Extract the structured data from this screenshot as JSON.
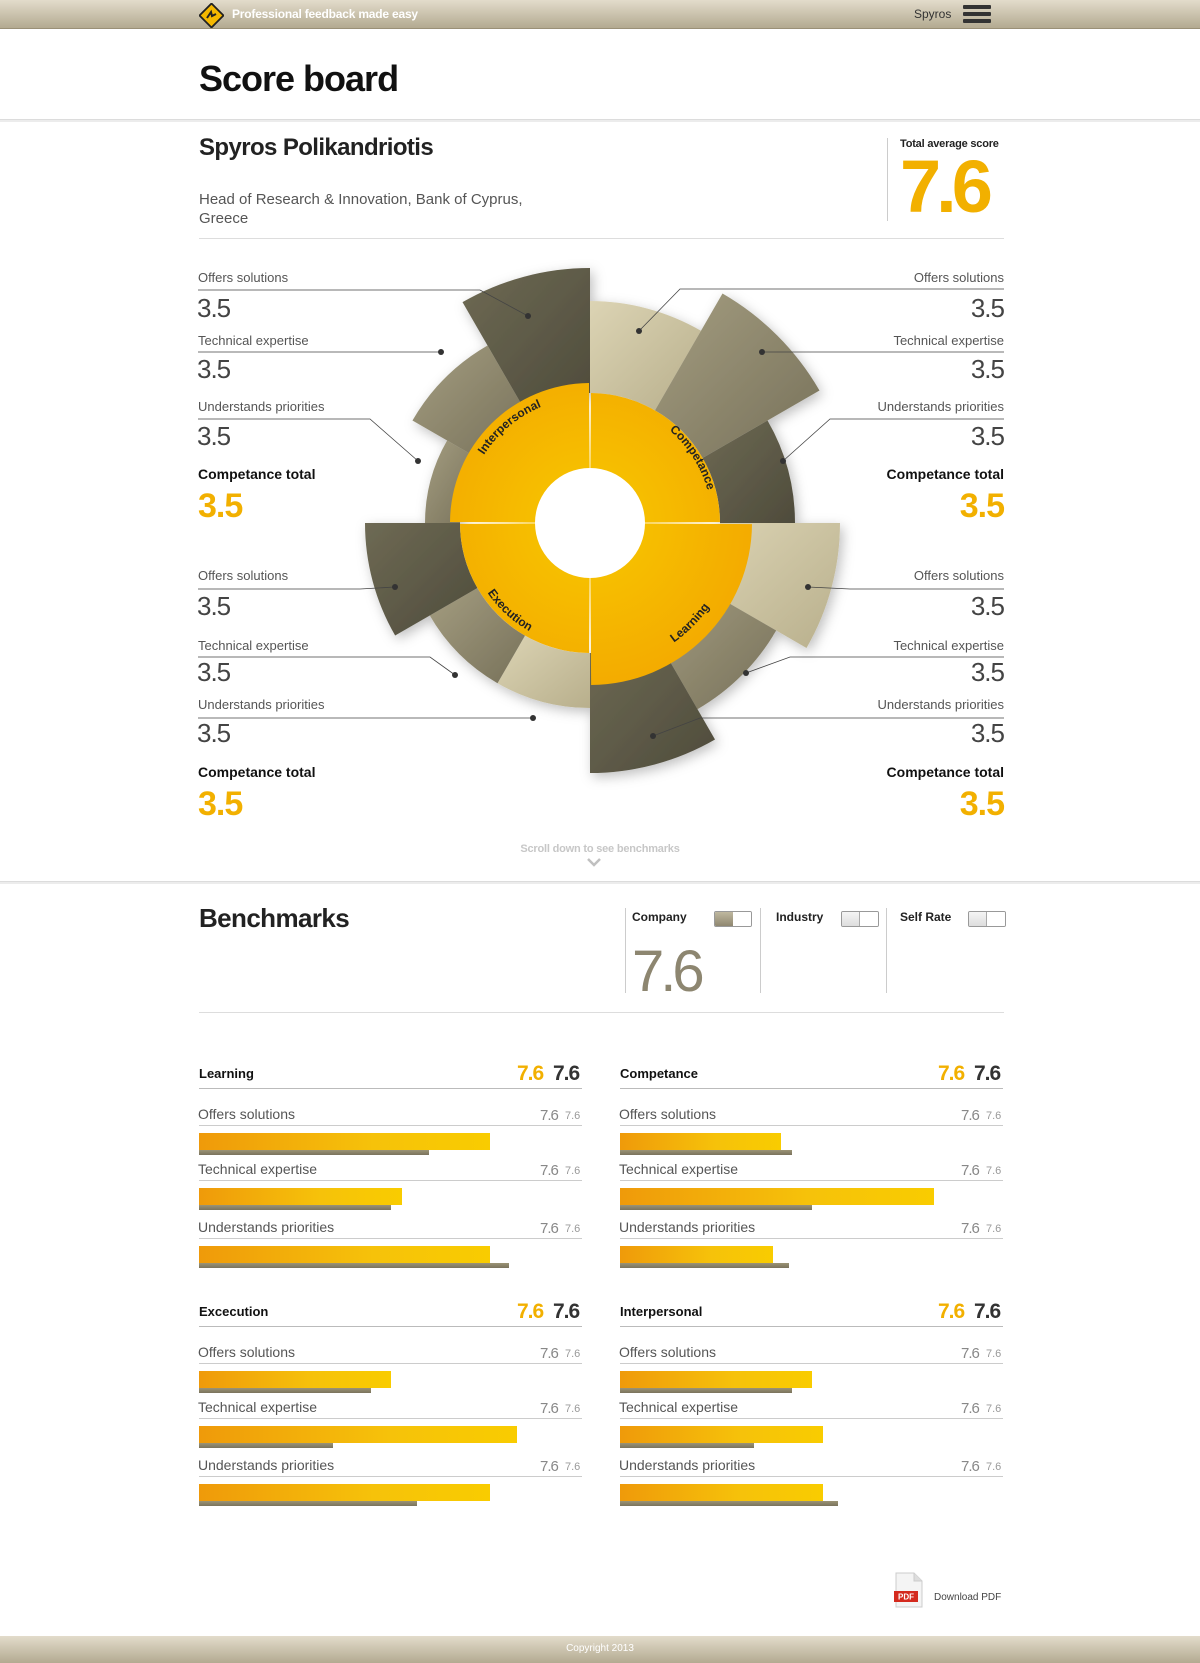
{
  "header": {
    "tagline": "Professional feedback made easy",
    "user": "Spyros",
    "logo_icon": "logo-icon",
    "menu_icon": "hamburger-menu-icon"
  },
  "page_title": "Score board",
  "person": {
    "name": "Spyros Polikandriotis",
    "role": "Head of Research & Innovation, Bank of Cyprus, Greece"
  },
  "total": {
    "label": "Total average score",
    "value": "7.6"
  },
  "scores": {
    "top_left": {
      "items": [
        {
          "label": "Offers solutions",
          "value": "3.5"
        },
        {
          "label": "Technical expertise",
          "value": "3.5"
        },
        {
          "label": "Understands priorities",
          "value": "3.5"
        }
      ],
      "total_label": "Competance total",
      "total_value": "3.5"
    },
    "top_right": {
      "items": [
        {
          "label": "Offers solutions",
          "value": "3.5"
        },
        {
          "label": "Technical expertise",
          "value": "3.5"
        },
        {
          "label": "Understands priorities",
          "value": "3.5"
        }
      ],
      "total_label": "Competance total",
      "total_value": "3.5"
    },
    "bottom_left": {
      "items": [
        {
          "label": "Offers solutions",
          "value": "3.5"
        },
        {
          "label": "Technical expertise",
          "value": "3.5"
        },
        {
          "label": "Understands priorities",
          "value": "3.5"
        }
      ],
      "total_label": "Competance total",
      "total_value": "3.5"
    },
    "bottom_right": {
      "items": [
        {
          "label": "Offers solutions",
          "value": "3.5"
        },
        {
          "label": "Technical expertise",
          "value": "3.5"
        },
        {
          "label": "Understands priorities",
          "value": "3.5"
        }
      ],
      "total_label": "Competance total",
      "total_value": "3.5"
    }
  },
  "wheel": {
    "categories": [
      "Interpersonal",
      "Competance",
      "Learning",
      "Execution"
    ],
    "colors": {
      "yellow": "#f6b800",
      "dark": "#5f5b47",
      "mid": "#8c866c",
      "light": "#c6bd9a"
    }
  },
  "scroll_hint": "Scroll down to see benchmarks",
  "benchmarks": {
    "title": "Benchmarks",
    "columns": [
      {
        "name": "Company",
        "toggle": "on",
        "value": "7.6"
      },
      {
        "name": "Industry",
        "toggle": "off",
        "value": ""
      },
      {
        "name": "Self Rate",
        "toggle": "off",
        "value": ""
      }
    ],
    "categories": [
      {
        "title": "Learning",
        "score_a": "7.6",
        "score_b": "7.6",
        "items": [
          {
            "label": "Offers solutions",
            "a": "7.6",
            "b": "7.6",
            "yellow": 0.76,
            "grey": 0.6
          },
          {
            "label": "Technical expertise",
            "a": "7.6",
            "b": "7.6",
            "yellow": 0.53,
            "grey": 0.5
          },
          {
            "label": "Understands priorities",
            "a": "7.6",
            "b": "7.6",
            "yellow": 0.76,
            "grey": 0.81
          }
        ]
      },
      {
        "title": "Competance",
        "score_a": "7.6",
        "score_b": "7.6",
        "items": [
          {
            "label": "Offers solutions",
            "a": "7.6",
            "b": "7.6",
            "yellow": 0.42,
            "grey": 0.45
          },
          {
            "label": "Technical expertise",
            "a": "7.6",
            "b": "7.6",
            "yellow": 0.82,
            "grey": 0.5
          },
          {
            "label": "Understands priorities",
            "a": "7.6",
            "b": "7.6",
            "yellow": 0.4,
            "grey": 0.44
          }
        ]
      },
      {
        "title": "Excecution",
        "score_a": "7.6",
        "score_b": "7.6",
        "items": [
          {
            "label": "Offers solutions",
            "a": "7.6",
            "b": "7.6",
            "yellow": 0.5,
            "grey": 0.45
          },
          {
            "label": "Technical expertise",
            "a": "7.6",
            "b": "7.6",
            "yellow": 0.83,
            "grey": 0.35
          },
          {
            "label": "Understands priorities",
            "a": "7.6",
            "b": "7.6",
            "yellow": 0.76,
            "grey": 0.57
          }
        ]
      },
      {
        "title": "Interpersonal",
        "score_a": "7.6",
        "score_b": "7.6",
        "items": [
          {
            "label": "Offers solutions",
            "a": "7.6",
            "b": "7.6",
            "yellow": 0.5,
            "grey": 0.45
          },
          {
            "label": "Technical expertise",
            "a": "7.6",
            "b": "7.6",
            "yellow": 0.53,
            "grey": 0.35
          },
          {
            "label": "Understands priorities",
            "a": "7.6",
            "b": "7.6",
            "yellow": 0.53,
            "grey": 0.57
          }
        ]
      }
    ]
  },
  "pdf": {
    "label": "Download PDF",
    "badge": "PDF",
    "icon": "pdf-file-icon"
  },
  "footer": {
    "copyright": "Copyright 2013"
  }
}
